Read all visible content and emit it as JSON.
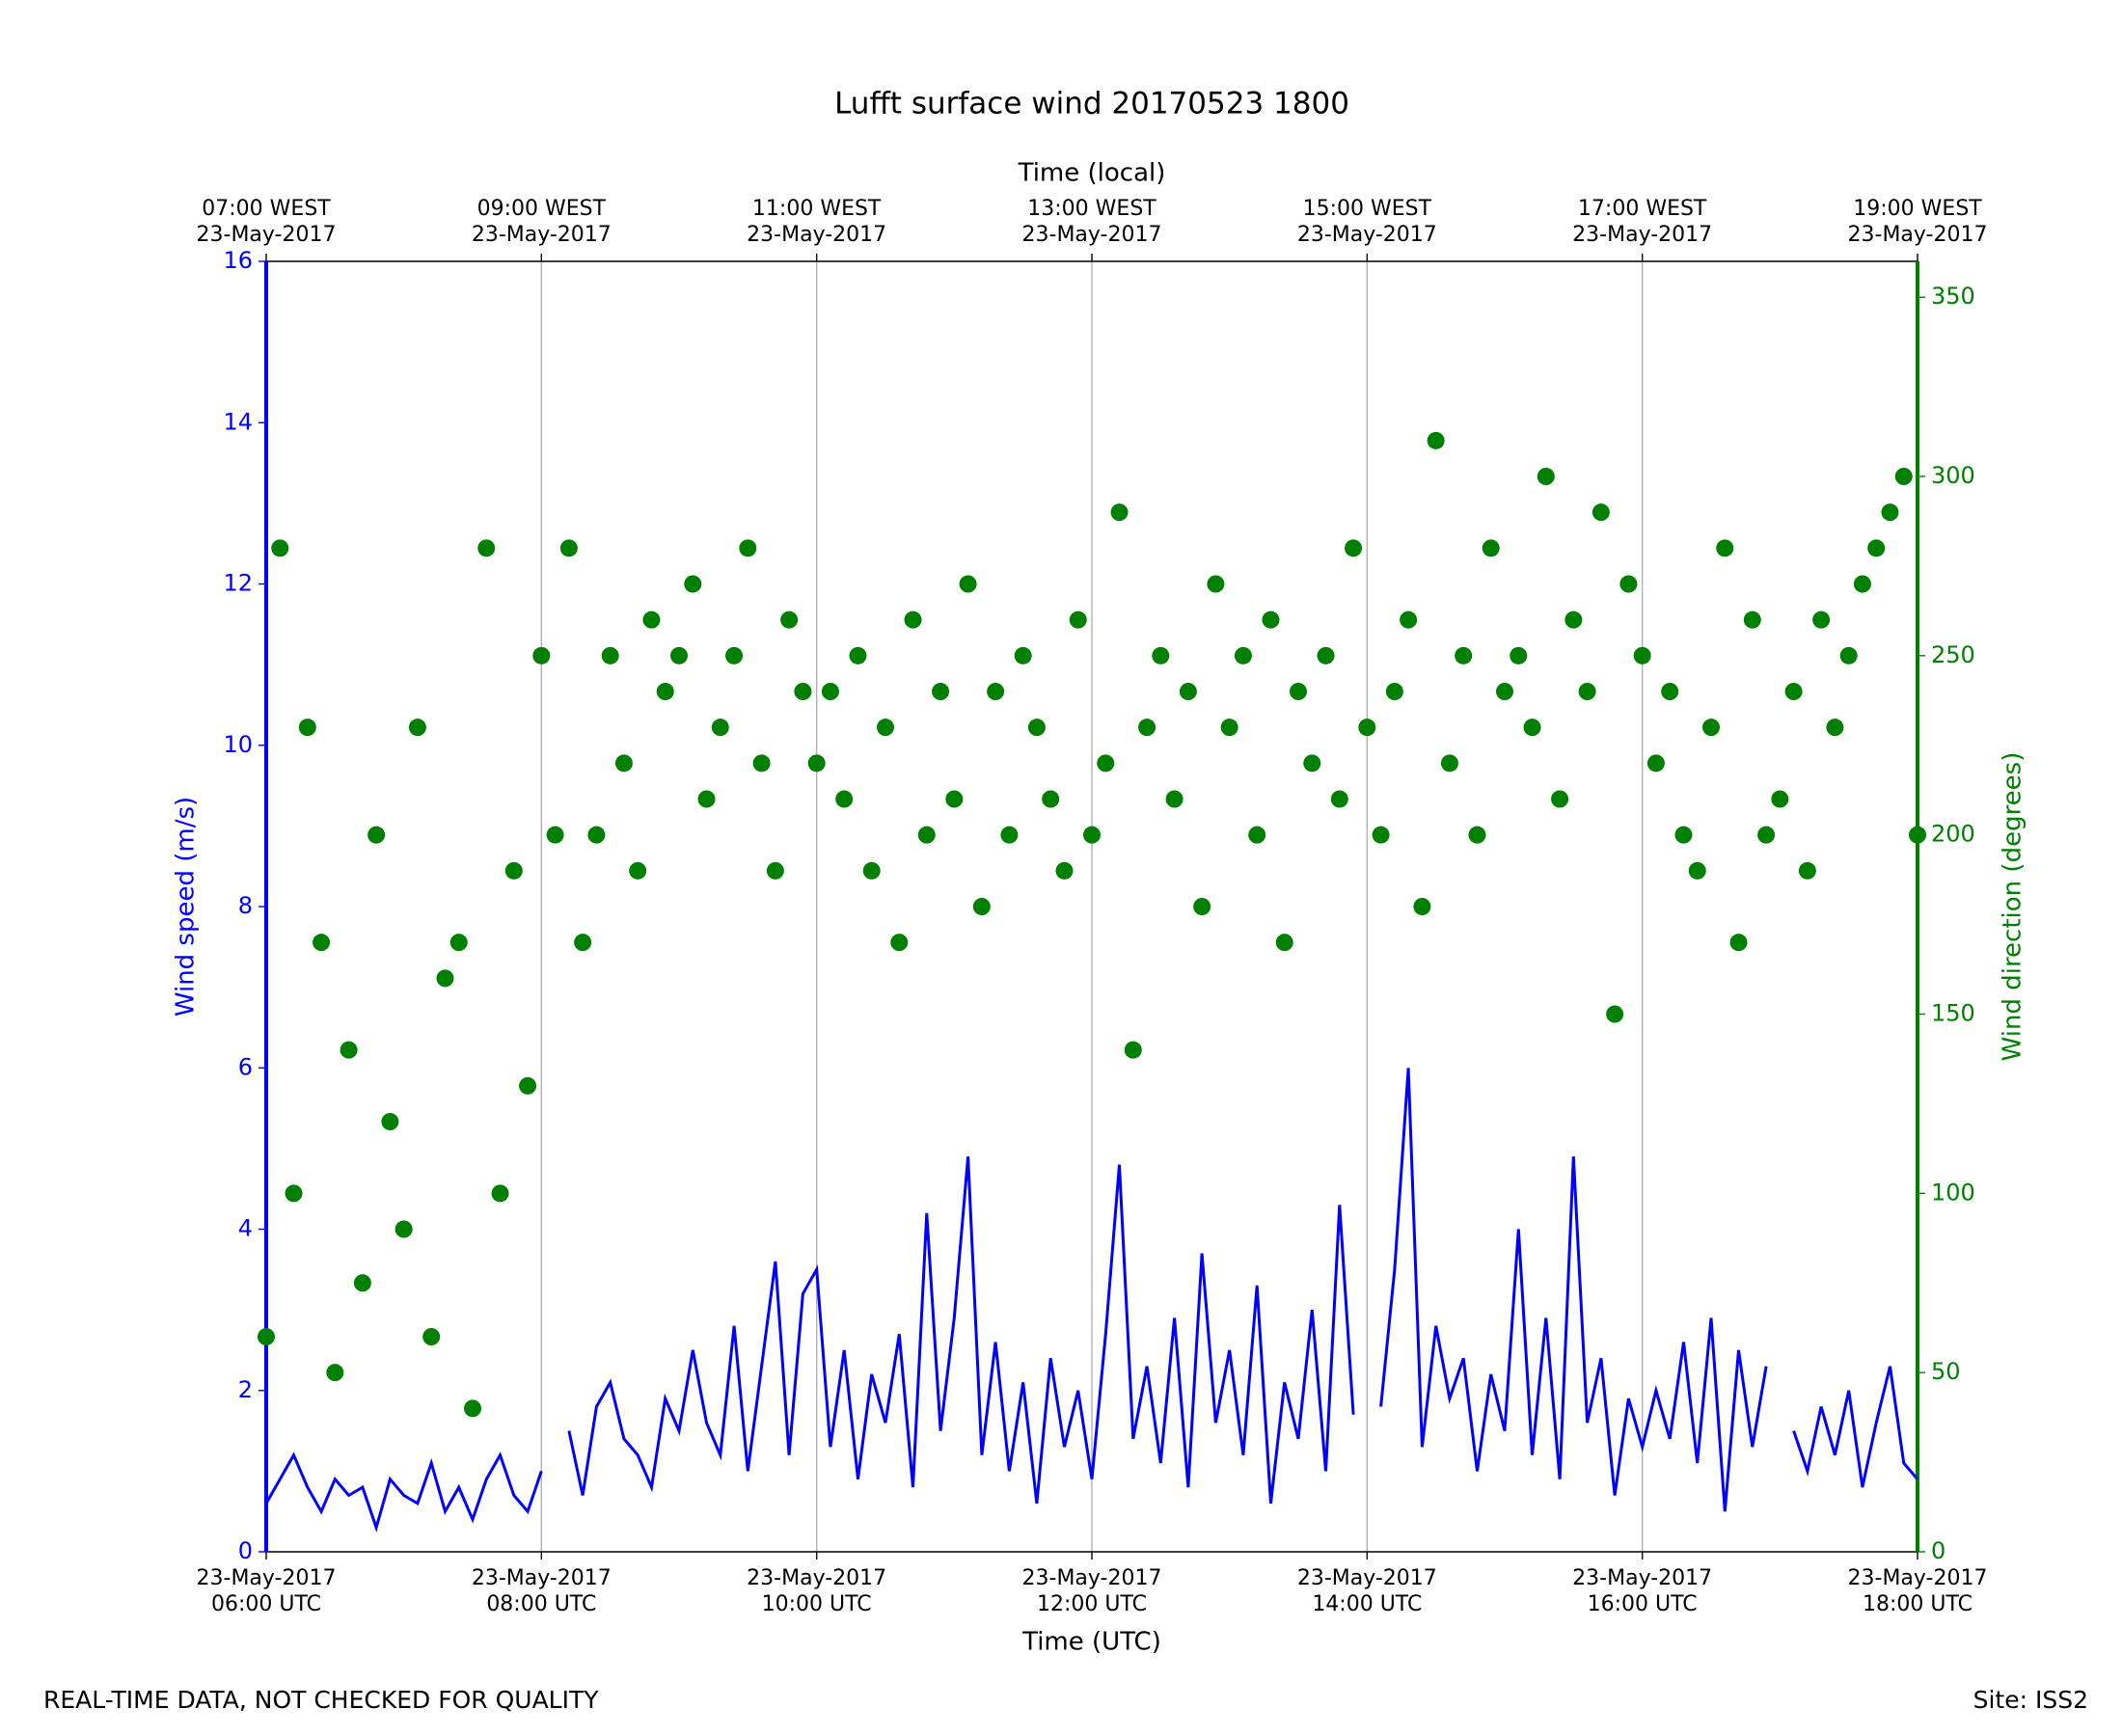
{
  "chart_data": {
    "type": "line",
    "title": "Lufft surface wind 20170523 1800",
    "xlabel": "Time (UTC)",
    "x2label": "Time (local)",
    "ylabel": "Wind speed (m/s)",
    "y2label": "Wind direction (degrees)",
    "footer_left": "REAL-TIME DATA, NOT CHECKED FOR QUALITY",
    "footer_right": "Site: ISS2",
    "xlim": [
      6,
      18
    ],
    "xticks": [
      {
        "value": 6,
        "label": "23-May-2017\n06:00 UTC"
      },
      {
        "value": 8,
        "label": "23-May-2017\n08:00 UTC"
      },
      {
        "value": 10,
        "label": "23-May-2017\n10:00 UTC"
      },
      {
        "value": 12,
        "label": "23-May-2017\n12:00 UTC"
      },
      {
        "value": 14,
        "label": "23-May-2017\n14:00 UTC"
      },
      {
        "value": 16,
        "label": "23-May-2017\n16:00 UTC"
      },
      {
        "value": 18,
        "label": "23-May-2017\n18:00 UTC"
      }
    ],
    "x2ticks": [
      {
        "value": 6,
        "label": "07:00 WEST\n23-May-2017"
      },
      {
        "value": 8,
        "label": "09:00 WEST\n23-May-2017"
      },
      {
        "value": 10,
        "label": "11:00 WEST\n23-May-2017"
      },
      {
        "value": 12,
        "label": "13:00 WEST\n23-May-2017"
      },
      {
        "value": 14,
        "label": "15:00 WEST\n23-May-2017"
      },
      {
        "value": 16,
        "label": "17:00 WEST\n23-May-2017"
      },
      {
        "value": 18,
        "label": "19:00 WEST\n23-May-2017"
      }
    ],
    "ylim": [
      0,
      16
    ],
    "yticks": [
      0,
      2,
      4,
      6,
      8,
      10,
      12,
      14,
      16
    ],
    "y2lim": [
      0,
      360
    ],
    "y2ticks": [
      0,
      50,
      100,
      150,
      200,
      250,
      300,
      350
    ],
    "grid": true,
    "ycolor": "#0000ff",
    "y2color": "#008000",
    "x": [
      6.0,
      6.1,
      6.2,
      6.3,
      6.4,
      6.5,
      6.6,
      6.7,
      6.8,
      6.9,
      7.0,
      7.1,
      7.2,
      7.3,
      7.4,
      7.5,
      7.6,
      7.7,
      7.8,
      7.9,
      8.0,
      8.1,
      8.2,
      8.3,
      8.4,
      8.5,
      8.6,
      8.7,
      8.8,
      8.9,
      9.0,
      9.1,
      9.2,
      9.3,
      9.4,
      9.5,
      9.6,
      9.7,
      9.8,
      9.9,
      10.0,
      10.1,
      10.2,
      10.3,
      10.4,
      10.5,
      10.6,
      10.7,
      10.8,
      10.9,
      11.0,
      11.1,
      11.2,
      11.3,
      11.4,
      11.5,
      11.6,
      11.7,
      11.8,
      11.9,
      12.0,
      12.1,
      12.2,
      12.3,
      12.4,
      12.5,
      12.6,
      12.7,
      12.8,
      12.9,
      13.0,
      13.1,
      13.2,
      13.3,
      13.4,
      13.5,
      13.6,
      13.7,
      13.8,
      13.9,
      14.0,
      14.1,
      14.2,
      14.3,
      14.4,
      14.5,
      14.6,
      14.7,
      14.8,
      14.9,
      15.0,
      15.1,
      15.2,
      15.3,
      15.4,
      15.5,
      15.6,
      15.7,
      15.8,
      15.9,
      16.0,
      16.1,
      16.2,
      16.3,
      16.4,
      16.5,
      16.6,
      16.7,
      16.8,
      16.9,
      17.0,
      17.1,
      17.2,
      17.3,
      17.4,
      17.5,
      17.6,
      17.7,
      17.8,
      17.9,
      18.0
    ],
    "series": [
      {
        "type": "line",
        "axis": "y",
        "color": "#0000ff",
        "values": [
          0.6,
          0.9,
          1.2,
          0.8,
          0.5,
          0.9,
          0.7,
          0.8,
          0.3,
          0.9,
          0.7,
          0.6,
          1.1,
          0.5,
          0.8,
          0.4,
          0.9,
          1.2,
          0.7,
          0.5,
          1.0,
          null,
          1.5,
          0.7,
          1.8,
          2.1,
          1.4,
          1.2,
          0.8,
          1.9,
          1.5,
          2.5,
          1.6,
          1.2,
          2.8,
          1.0,
          2.3,
          3.6,
          1.2,
          3.2,
          3.5,
          1.3,
          2.5,
          0.9,
          2.2,
          1.6,
          2.7,
          0.8,
          4.2,
          1.5,
          2.9,
          4.9,
          1.2,
          2.6,
          1.0,
          2.1,
          0.6,
          2.4,
          1.3,
          2.0,
          0.9,
          2.7,
          4.8,
          1.4,
          2.3,
          1.1,
          2.9,
          0.8,
          3.7,
          1.6,
          2.5,
          1.2,
          3.3,
          0.6,
          2.1,
          1.4,
          3.0,
          1.0,
          4.3,
          1.7,
          null,
          1.8,
          3.5,
          6.0,
          1.3,
          2.8,
          1.9,
          2.4,
          1.0,
          2.2,
          1.5,
          4.0,
          1.2,
          2.9,
          0.9,
          4.9,
          1.6,
          2.4,
          0.7,
          1.9,
          1.3,
          2.0,
          1.4,
          2.6,
          1.1,
          2.9,
          0.5,
          2.5,
          1.3,
          2.3,
          null,
          1.5,
          1.0,
          1.8,
          1.2,
          2.0,
          0.8,
          1.6,
          2.3,
          1.1,
          0.9
        ]
      },
      {
        "type": "scatter",
        "axis": "y2",
        "color": "#008000",
        "values": [
          60,
          280,
          100,
          230,
          170,
          50,
          140,
          75,
          200,
          120,
          90,
          230,
          60,
          160,
          170,
          40,
          280,
          100,
          190,
          130,
          250,
          200,
          280,
          170,
          200,
          250,
          220,
          190,
          260,
          240,
          250,
          270,
          210,
          230,
          250,
          280,
          220,
          190,
          260,
          240,
          220,
          240,
          210,
          250,
          190,
          230,
          170,
          260,
          200,
          240,
          210,
          270,
          180,
          240,
          200,
          250,
          230,
          210,
          190,
          260,
          200,
          220,
          290,
          140,
          230,
          250,
          210,
          240,
          180,
          270,
          230,
          250,
          200,
          260,
          170,
          240,
          220,
          250,
          210,
          280,
          230,
          200,
          240,
          260,
          180,
          310,
          220,
          250,
          200,
          280,
          240,
          250,
          230,
          300,
          210,
          260,
          240,
          290,
          150,
          270,
          250,
          220,
          240,
          200,
          190,
          230,
          280,
          170,
          260,
          200,
          210,
          240,
          190,
          260,
          230,
          250,
          270,
          280,
          290,
          300,
          200
        ]
      }
    ]
  }
}
